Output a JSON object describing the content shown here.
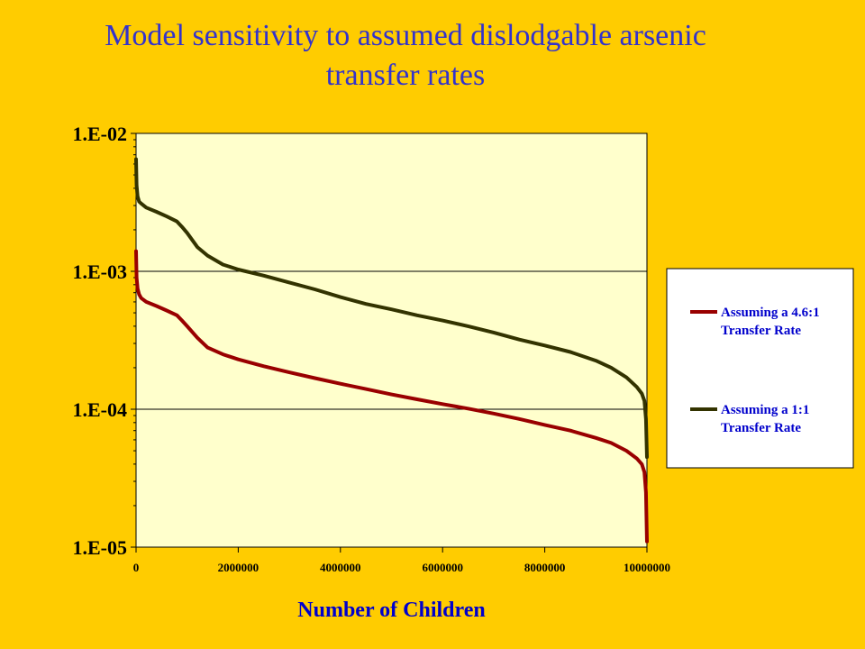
{
  "page": {
    "title_line1": "Model sensitivity to assumed dislodgable arsenic",
    "title_line2": "transfer rates",
    "title_color": "#3333CC",
    "background": "#FFCC00"
  },
  "chart_data": {
    "type": "line",
    "xlabel": "Number of Children",
    "ylabel": "",
    "y_scale": "log",
    "xlim": [
      0,
      10000000
    ],
    "ylim": [
      1e-05,
      0.01
    ],
    "x_ticks": [
      0,
      2000000,
      4000000,
      6000000,
      8000000,
      10000000
    ],
    "x_tick_labels": [
      "0",
      "2000000",
      "4000000",
      "6000000",
      "8000000",
      "10000000"
    ],
    "y_ticks": [
      0.01,
      0.001,
      0.0001,
      1e-05
    ],
    "y_tick_labels": [
      "1.E-02",
      "1.E-03",
      "1.E-04",
      "1.E-05"
    ],
    "grid": "horizontal",
    "plot_background": "#FFFFCC",
    "legend_position": "right",
    "series": [
      {
        "name": "Assuming a 4.6:1 Transfer Rate",
        "legend_lines": [
          "Assuming a 4.6:1",
          "Transfer Rate"
        ],
        "color": "#990000",
        "x": [
          0,
          10000,
          30000,
          60000,
          100000,
          200000,
          400000,
          600000,
          800000,
          900000,
          1000000,
          1200000,
          1400000,
          1700000,
          2000000,
          2500000,
          3000000,
          3500000,
          4000000,
          4500000,
          5000000,
          5500000,
          6000000,
          6500000,
          7000000,
          7500000,
          8000000,
          8500000,
          9000000,
          9300000,
          9600000,
          9800000,
          9900000,
          9950000,
          9980000,
          10000000
        ],
        "values": [
          0.0014,
          0.0009,
          0.00075,
          0.00068,
          0.00064,
          0.0006,
          0.00056,
          0.00052,
          0.00048,
          0.00044,
          0.0004,
          0.00033,
          0.00028,
          0.00025,
          0.00023,
          0.000205,
          0.000185,
          0.000168,
          0.000153,
          0.00014,
          0.000128,
          0.000118,
          0.000109,
          0.000101,
          9.3e-05,
          8.5e-05,
          7.7e-05,
          7e-05,
          6.2e-05,
          5.7e-05,
          5e-05,
          4.4e-05,
          4e-05,
          3.5e-05,
          2.5e-05,
          1.1e-05
        ]
      },
      {
        "name": "Assuming a 1:1 Transfer Rate",
        "legend_lines": [
          "Assuming a 1:1",
          "Transfer Rate"
        ],
        "color": "#333300",
        "x": [
          0,
          10000,
          30000,
          60000,
          100000,
          200000,
          400000,
          600000,
          800000,
          900000,
          1000000,
          1200000,
          1400000,
          1700000,
          2000000,
          2500000,
          3000000,
          3500000,
          4000000,
          4500000,
          5000000,
          5500000,
          6000000,
          6500000,
          7000000,
          7500000,
          8000000,
          8500000,
          9000000,
          9300000,
          9600000,
          9800000,
          9900000,
          9950000,
          9980000,
          10000000
        ],
        "values": [
          0.0065,
          0.0042,
          0.0035,
          0.0032,
          0.0031,
          0.0029,
          0.0027,
          0.0025,
          0.0023,
          0.0021,
          0.0019,
          0.0015,
          0.0013,
          0.00112,
          0.00103,
          0.00093,
          0.00083,
          0.00074,
          0.00065,
          0.00058,
          0.00053,
          0.00048,
          0.00044,
          0.0004,
          0.00036,
          0.00032,
          0.00029,
          0.00026,
          0.000225,
          0.0002,
          0.00017,
          0.000145,
          0.00013,
          0.000115,
          8.5e-05,
          4.5e-05
        ]
      }
    ]
  }
}
